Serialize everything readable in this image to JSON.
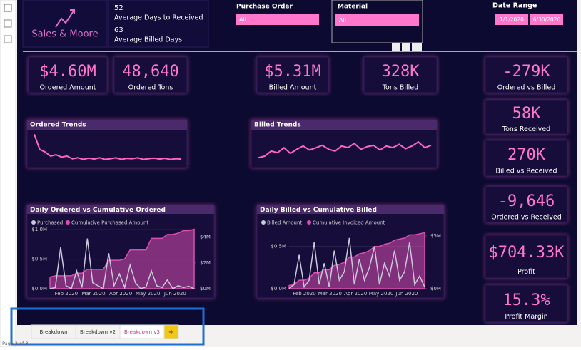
{
  "header": {
    "brand": "Sales & Moore",
    "stat1_value": "52",
    "stat1_label": "Average Days to Received",
    "stat2_value": "63",
    "stat2_label": "Average Billed Days"
  },
  "slicers": {
    "purchase_order": {
      "label": "Purchase Order",
      "value": "All"
    },
    "material": {
      "label": "Material",
      "value": "All"
    },
    "date_range": {
      "label": "Date Range",
      "start": "1/1/2020",
      "end": "6/30/2020"
    }
  },
  "cards": [
    {
      "value": "$4.60M",
      "label": "Ordered Amount"
    },
    {
      "value": "48,640",
      "label": "Ordered Tons"
    },
    {
      "value": "$5.31M",
      "label": "Billed Amount"
    },
    {
      "value": "328K",
      "label": "Tons Billed"
    },
    {
      "value": "-279K",
      "label": "Ordered vs Billed"
    },
    {
      "value": "58K",
      "label": "Tons Received"
    },
    {
      "value": "270K",
      "label": "Billed vs Received"
    },
    {
      "value": "-9,646",
      "label": "Ordered vs Received"
    },
    {
      "value": "$704.33K",
      "label": "Profit"
    },
    {
      "value": "15.3%",
      "label": "Profit Margin"
    }
  ],
  "trends": [
    {
      "type": "line",
      "title": "Ordered Trends",
      "color": "#ff66c4",
      "ylim": [
        0,
        1
      ],
      "values": [
        0.95,
        0.5,
        0.42,
        0.3,
        0.34,
        0.27,
        0.3,
        0.22,
        0.25,
        0.2,
        0.24,
        0.21,
        0.25,
        0.2,
        0.22,
        0.25,
        0.2,
        0.23,
        0.22,
        0.25,
        0.2,
        0.22,
        0.24,
        0.21,
        0.23,
        0.2,
        0.22,
        0.21
      ]
    },
    {
      "type": "line",
      "title": "Billed Trends",
      "color": "#ff66c4",
      "ylim": [
        0,
        1
      ],
      "values": [
        0.25,
        0.3,
        0.45,
        0.4,
        0.55,
        0.38,
        0.5,
        0.6,
        0.48,
        0.55,
        0.62,
        0.5,
        0.45,
        0.6,
        0.55,
        0.68,
        0.5,
        0.58,
        0.62,
        0.48,
        0.6,
        0.55,
        0.65,
        0.52,
        0.6,
        0.72,
        0.55,
        0.62
      ]
    }
  ],
  "chart_data": [
    {
      "type": "combo",
      "title": "Daily Ordered vs Cumulative Ordered",
      "xticks": [
        "Feb 2020",
        "Mar 2020",
        "Apr 2020",
        "May 2020",
        "Jun 2020"
      ],
      "ylim": [
        0,
        1.05
      ],
      "yticks": [
        {
          "value": 0,
          "label": "$0.0M"
        },
        {
          "value": 0.5,
          "label": "$0.5M"
        },
        {
          "value": 1.0,
          "label": "$1.0M"
        }
      ],
      "y2lim": [
        0,
        4.8
      ],
      "y2ticks": [
        {
          "value": 0,
          "label": "$0M"
        },
        {
          "value": 2,
          "label": "$2M"
        },
        {
          "value": 4,
          "label": "$4M"
        }
      ],
      "series": [
        {
          "name": "Purchased",
          "color": "#c9c9d9",
          "values": [
            0,
            0.02,
            0.7,
            0.05,
            0,
            0.3,
            0.02,
            0.85,
            0.1,
            0.05,
            0,
            0.6,
            0.05,
            0.25,
            0.02,
            0.4,
            0.1,
            0,
            0.03,
            0.3,
            0.05,
            0.02,
            0.15,
            0,
            0.05,
            0.02,
            0.04,
            0
          ]
        },
        {
          "name": "Cumulative Purchased Amount",
          "color": "#d94fb0",
          "axis": "y2",
          "values": [
            0.9,
            1.0,
            1.0,
            1.0,
            1.0,
            1.2,
            1.2,
            1.5,
            1.5,
            1.5,
            1.5,
            2.2,
            2.2,
            2.2,
            2.3,
            3.0,
            3.0,
            3.0,
            3.0,
            3.9,
            3.9,
            3.9,
            4.2,
            4.2,
            4.3,
            4.5,
            4.5,
            4.6
          ]
        }
      ]
    },
    {
      "type": "combo",
      "title": "Daily Billed vs Cumulative Billed",
      "xticks": [
        "Feb 2020",
        "Mar 2020",
        "Apr 2020",
        "May 2020",
        "Jun 2020"
      ],
      "ylim": [
        0,
        0.7
      ],
      "yticks": [
        {
          "value": 0,
          "label": "$0.0M"
        },
        {
          "value": 0.5,
          "label": "$0.5M"
        }
      ],
      "y2lim": [
        0,
        5.6
      ],
      "y2ticks": [
        {
          "value": 0,
          "label": "$0M"
        },
        {
          "value": 5,
          "label": "$5M"
        }
      ],
      "series": [
        {
          "name": "Billed Amount",
          "color": "#c9c9d9",
          "values": [
            0,
            0.05,
            0.4,
            0.02,
            0.1,
            0.55,
            0.05,
            0.3,
            0.02,
            0.45,
            0.1,
            0.2,
            0.6,
            0.05,
            0.35,
            0.1,
            0.25,
            0.5,
            0.05,
            0.3,
            0.15,
            0.45,
            0.1,
            0.2,
            0.55,
            0.05,
            0.15,
            0.02
          ]
        },
        {
          "name": "Cumulative Invoiced Amount",
          "color": "#d94fb0",
          "axis": "y2",
          "values": [
            0.3,
            0.4,
            0.8,
            0.8,
            1.0,
            1.5,
            1.5,
            1.8,
            1.8,
            2.2,
            2.3,
            2.5,
            3.0,
            3.0,
            3.3,
            3.4,
            3.6,
            4.0,
            4.0,
            4.2,
            4.3,
            4.6,
            4.7,
            4.8,
            5.1,
            5.1,
            5.2,
            5.3
          ]
        }
      ]
    }
  ],
  "tabs": [
    "Breakdown",
    "Breakdown v2",
    "Breakdown v3",
    "+"
  ],
  "status": "Page 3 of 3"
}
